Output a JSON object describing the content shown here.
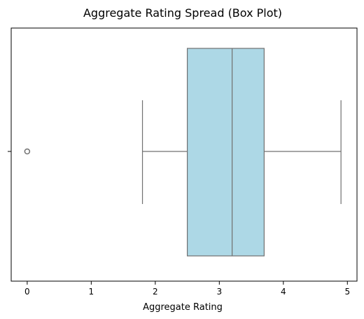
{
  "chart_data": {
    "type": "box",
    "title": "Aggregate Rating Spread (Box Plot)",
    "xlabel": "Aggregate Rating",
    "ylabel": "",
    "orientation": "horizontal",
    "xlim": [
      -0.25,
      5.15
    ],
    "x_ticks": [
      0,
      1,
      2,
      3,
      4,
      5
    ],
    "grid": false,
    "box": {
      "whisker_low": 1.8,
      "q1": 2.5,
      "median": 3.2,
      "q3": 3.7,
      "whisker_high": 4.9,
      "outliers": [
        0
      ]
    },
    "colors": {
      "box_fill": "#add8e6",
      "lines": "#707070",
      "axes": "#000000"
    }
  }
}
